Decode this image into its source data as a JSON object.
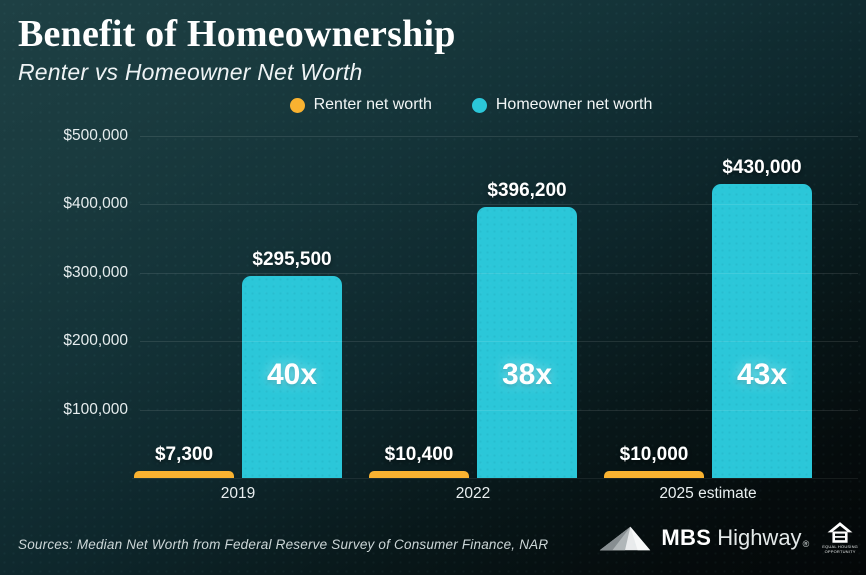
{
  "title": "Benefit of Homeownership",
  "subtitle": "Renter vs Homeowner Net Worth",
  "legend": {
    "items": [
      {
        "label": "Renter net worth",
        "color": "#f9b230",
        "icon": "legend-dot"
      },
      {
        "label": "Homeowner net worth",
        "color": "#2bc7d9",
        "icon": "legend-dot"
      }
    ]
  },
  "chart_data": {
    "type": "bar",
    "title": "Benefit of Homeownership",
    "subtitle": "Renter vs Homeowner Net Worth",
    "categories": [
      "2019",
      "2022",
      "2025 estimate"
    ],
    "series": [
      {
        "name": "Renter net worth",
        "color": "#f9b230",
        "values": [
          7300,
          10400,
          10000
        ],
        "value_labels": [
          "$7,300",
          "$10,400",
          "$10,000"
        ]
      },
      {
        "name": "Homeowner net worth",
        "color": "#2bc7d9",
        "values": [
          295500,
          396200,
          430000
        ],
        "value_labels": [
          "$295,500",
          "$396,200",
          "$430,000"
        ]
      }
    ],
    "multiplier_labels": [
      "40x",
      "38x",
      "43x"
    ],
    "ylim": [
      0,
      500000
    ],
    "ytick_values": [
      500000,
      400000,
      300000,
      200000,
      100000
    ],
    "ytick_labels": [
      "$500,000",
      "$400,000",
      "$300,000",
      "$200,000",
      "$100,000"
    ],
    "grid": true,
    "legend_position": "top-center"
  },
  "footer": {
    "sources": "Sources: Median Net Worth from Federal Reserve Survey of Consumer Finance, NAR",
    "brand": {
      "mbs": "MBS",
      "highway": "Highway",
      "registered": "®"
    },
    "equal_housing": {
      "line1": "EQUAL HOUSING",
      "line2": "OPPORTUNITY"
    }
  },
  "colors": {
    "background_top": "#1e4044",
    "background_bottom": "#040708",
    "renter_bar": "#f9b230",
    "homeowner_bar": "#2bc7d9",
    "grid": "rgba(255,255,255,0.10)",
    "text": "#ffffff"
  }
}
